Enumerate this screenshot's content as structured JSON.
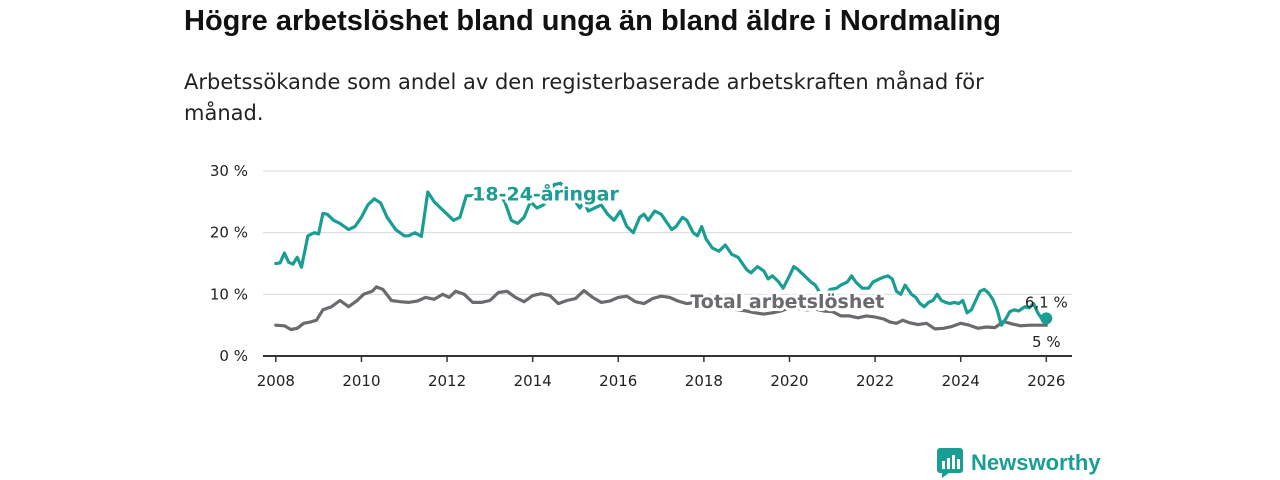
{
  "header": {
    "title": "Högre arbetslöshet bland unga än bland äldre i Nordmaling",
    "subtitle": "Arbetssökande som andel av den registerbaserade arbetskraften månad för månad."
  },
  "branding": {
    "name": "Newsworthy",
    "color": "#1a9e94"
  },
  "chart_data": {
    "type": "line",
    "title": "Högre arbetslöshet bland unga än bland äldre i Nordmaling",
    "subtitle": "Arbetssökande som andel av den registerbaserade arbetskraften månad för månad.",
    "xlabel": "",
    "ylabel": "",
    "x_ticks": [
      "2008",
      "2010",
      "2012",
      "2014",
      "2016",
      "2018",
      "2020",
      "2022",
      "2024",
      "2026"
    ],
    "y_ticks": [
      "0 %",
      "10 %",
      "20 %",
      "30 %"
    ],
    "xlim": [
      2007.7,
      2026.6
    ],
    "ylim": [
      0,
      30
    ],
    "grid": true,
    "legend": "inline",
    "series": [
      {
        "name": "18-24-åringar",
        "color": "#1a9e94",
        "end_label": "6,1 %",
        "end_marker": true,
        "points": [
          [
            2008.0,
            15.0
          ],
          [
            2008.1,
            15.1
          ],
          [
            2008.2,
            16.7
          ],
          [
            2008.3,
            15.2
          ],
          [
            2008.4,
            14.9
          ],
          [
            2008.5,
            16.0
          ],
          [
            2008.6,
            14.4
          ],
          [
            2008.75,
            19.5
          ],
          [
            2008.9,
            20.0
          ],
          [
            2009.0,
            19.8
          ],
          [
            2009.1,
            23.1
          ],
          [
            2009.2,
            23.0
          ],
          [
            2009.35,
            22.0
          ],
          [
            2009.5,
            21.5
          ],
          [
            2009.6,
            21.0
          ],
          [
            2009.7,
            20.5
          ],
          [
            2009.85,
            21.0
          ],
          [
            2010.0,
            22.5
          ],
          [
            2010.15,
            24.5
          ],
          [
            2010.3,
            25.5
          ],
          [
            2010.45,
            24.8
          ],
          [
            2010.6,
            22.5
          ],
          [
            2010.8,
            20.5
          ],
          [
            2011.0,
            19.5
          ],
          [
            2011.1,
            19.5
          ],
          [
            2011.25,
            20.0
          ],
          [
            2011.4,
            19.4
          ],
          [
            2011.55,
            26.6
          ],
          [
            2011.7,
            25.0
          ],
          [
            2011.85,
            24.0
          ],
          [
            2012.0,
            23.0
          ],
          [
            2012.15,
            22.0
          ],
          [
            2012.3,
            22.5
          ],
          [
            2012.45,
            26.0
          ],
          [
            2012.6,
            26.0
          ],
          [
            2012.75,
            25.5
          ],
          [
            2012.9,
            27.0
          ],
          [
            2013.05,
            26.2
          ],
          [
            2013.2,
            26.5
          ],
          [
            2013.35,
            25.0
          ],
          [
            2013.5,
            22.0
          ],
          [
            2013.65,
            21.5
          ],
          [
            2013.8,
            22.5
          ],
          [
            2013.95,
            25.0
          ],
          [
            2014.1,
            24.0
          ],
          [
            2014.25,
            24.5
          ],
          [
            2014.4,
            26.0
          ],
          [
            2014.5,
            27.8
          ],
          [
            2014.65,
            28.0
          ],
          [
            2014.8,
            27.0
          ],
          [
            2014.95,
            25.5
          ],
          [
            2015.1,
            24.0
          ],
          [
            2015.2,
            25.0
          ],
          [
            2015.3,
            23.5
          ],
          [
            2015.45,
            24.0
          ],
          [
            2015.6,
            24.5
          ],
          [
            2015.75,
            23.0
          ],
          [
            2015.9,
            22.0
          ],
          [
            2016.05,
            23.5
          ],
          [
            2016.2,
            21.0
          ],
          [
            2016.35,
            20.0
          ],
          [
            2016.5,
            22.5
          ],
          [
            2016.6,
            23.0
          ],
          [
            2016.7,
            22.0
          ],
          [
            2016.85,
            23.5
          ],
          [
            2017.0,
            23.0
          ],
          [
            2017.15,
            21.5
          ],
          [
            2017.25,
            20.5
          ],
          [
            2017.35,
            21.0
          ],
          [
            2017.5,
            22.5
          ],
          [
            2017.6,
            22.0
          ],
          [
            2017.75,
            20.0
          ],
          [
            2017.85,
            19.5
          ],
          [
            2017.95,
            21.0
          ],
          [
            2018.05,
            19.0
          ],
          [
            2018.2,
            17.5
          ],
          [
            2018.35,
            17.0
          ],
          [
            2018.5,
            18.0
          ],
          [
            2018.65,
            16.5
          ],
          [
            2018.8,
            16.0
          ],
          [
            2018.9,
            15.0
          ],
          [
            2019.0,
            14.0
          ],
          [
            2019.1,
            13.5
          ],
          [
            2019.25,
            14.5
          ],
          [
            2019.4,
            13.8
          ],
          [
            2019.5,
            12.5
          ],
          [
            2019.6,
            13.0
          ],
          [
            2019.75,
            12.0
          ],
          [
            2019.85,
            11.0
          ],
          [
            2020.0,
            13.0
          ],
          [
            2020.1,
            14.5
          ],
          [
            2020.2,
            14.0
          ],
          [
            2020.35,
            13.0
          ],
          [
            2020.5,
            12.0
          ],
          [
            2020.6,
            11.5
          ],
          [
            2020.75,
            9.8
          ],
          [
            2020.85,
            10.0
          ],
          [
            2020.95,
            10.8
          ],
          [
            2021.1,
            11.0
          ],
          [
            2021.2,
            11.5
          ],
          [
            2021.35,
            12.0
          ],
          [
            2021.45,
            13.0
          ],
          [
            2021.55,
            12.0
          ],
          [
            2021.7,
            11.0
          ],
          [
            2021.85,
            11.0
          ],
          [
            2021.95,
            12.0
          ],
          [
            2022.1,
            12.5
          ],
          [
            2022.2,
            12.8
          ],
          [
            2022.3,
            13.0
          ],
          [
            2022.4,
            12.5
          ],
          [
            2022.5,
            10.5
          ],
          [
            2022.6,
            10.0
          ],
          [
            2022.7,
            11.5
          ],
          [
            2022.85,
            10.0
          ],
          [
            2022.95,
            9.5
          ],
          [
            2023.05,
            8.5
          ],
          [
            2023.15,
            8.0
          ],
          [
            2023.25,
            8.7
          ],
          [
            2023.35,
            9.0
          ],
          [
            2023.45,
            10.0
          ],
          [
            2023.55,
            9.0
          ],
          [
            2023.65,
            8.7
          ],
          [
            2023.75,
            8.5
          ],
          [
            2023.85,
            8.7
          ],
          [
            2023.95,
            8.5
          ],
          [
            2024.05,
            9.0
          ],
          [
            2024.15,
            7.0
          ],
          [
            2024.25,
            7.5
          ],
          [
            2024.35,
            9.0
          ],
          [
            2024.45,
            10.5
          ],
          [
            2024.55,
            10.8
          ],
          [
            2024.65,
            10.2
          ],
          [
            2024.75,
            9.2
          ],
          [
            2024.85,
            7.5
          ],
          [
            2024.95,
            5.0
          ],
          [
            2025.05,
            6.0
          ],
          [
            2025.15,
            7.2
          ],
          [
            2025.25,
            7.5
          ],
          [
            2025.35,
            7.3
          ],
          [
            2025.5,
            8.0
          ],
          [
            2025.6,
            7.8
          ],
          [
            2025.7,
            8.5
          ],
          [
            2025.8,
            7.0
          ],
          [
            2025.9,
            6.0
          ],
          [
            2026.0,
            6.1
          ]
        ]
      },
      {
        "name": "Total arbetslöshet",
        "color": "#6b6b6f",
        "end_label": "5 %",
        "end_marker": false,
        "points": [
          [
            2008.0,
            5.0
          ],
          [
            2008.2,
            4.9
          ],
          [
            2008.35,
            4.3
          ],
          [
            2008.5,
            4.5
          ],
          [
            2008.65,
            5.3
          ],
          [
            2008.8,
            5.5
          ],
          [
            2008.95,
            5.8
          ],
          [
            2009.1,
            7.5
          ],
          [
            2009.3,
            8.0
          ],
          [
            2009.5,
            9.0
          ],
          [
            2009.7,
            8.0
          ],
          [
            2009.9,
            9.0
          ],
          [
            2010.05,
            10.0
          ],
          [
            2010.25,
            10.5
          ],
          [
            2010.35,
            11.2
          ],
          [
            2010.5,
            10.8
          ],
          [
            2010.7,
            9.0
          ],
          [
            2010.9,
            8.8
          ],
          [
            2011.1,
            8.7
          ],
          [
            2011.3,
            8.9
          ],
          [
            2011.5,
            9.5
          ],
          [
            2011.7,
            9.2
          ],
          [
            2011.9,
            10.0
          ],
          [
            2012.05,
            9.5
          ],
          [
            2012.2,
            10.5
          ],
          [
            2012.4,
            10.0
          ],
          [
            2012.6,
            8.7
          ],
          [
            2012.8,
            8.7
          ],
          [
            2013.0,
            9.0
          ],
          [
            2013.2,
            10.3
          ],
          [
            2013.4,
            10.5
          ],
          [
            2013.6,
            9.5
          ],
          [
            2013.8,
            8.8
          ],
          [
            2014.0,
            9.8
          ],
          [
            2014.2,
            10.1
          ],
          [
            2014.4,
            9.8
          ],
          [
            2014.6,
            8.5
          ],
          [
            2014.8,
            9.0
          ],
          [
            2015.0,
            9.3
          ],
          [
            2015.2,
            10.6
          ],
          [
            2015.4,
            9.5
          ],
          [
            2015.6,
            8.7
          ],
          [
            2015.8,
            8.9
          ],
          [
            2016.0,
            9.5
          ],
          [
            2016.2,
            9.7
          ],
          [
            2016.4,
            8.8
          ],
          [
            2016.6,
            8.5
          ],
          [
            2016.8,
            9.3
          ],
          [
            2017.0,
            9.7
          ],
          [
            2017.2,
            9.5
          ],
          [
            2017.4,
            8.9
          ],
          [
            2017.6,
            8.5
          ],
          [
            2017.8,
            8.7
          ],
          [
            2018.0,
            8.5
          ],
          [
            2018.2,
            8.3
          ],
          [
            2018.4,
            8.0
          ],
          [
            2018.6,
            7.8
          ],
          [
            2018.8,
            7.5
          ],
          [
            2019.0,
            7.3
          ],
          [
            2019.2,
            7.0
          ],
          [
            2019.4,
            6.8
          ],
          [
            2019.6,
            7.0
          ],
          [
            2019.8,
            7.3
          ],
          [
            2020.0,
            7.8
          ],
          [
            2020.2,
            7.7
          ],
          [
            2020.4,
            7.5
          ],
          [
            2020.6,
            7.6
          ],
          [
            2020.8,
            7.3
          ],
          [
            2021.0,
            7.2
          ],
          [
            2021.2,
            6.5
          ],
          [
            2021.4,
            6.5
          ],
          [
            2021.6,
            6.2
          ],
          [
            2021.8,
            6.5
          ],
          [
            2022.0,
            6.3
          ],
          [
            2022.2,
            6.0
          ],
          [
            2022.35,
            5.5
          ],
          [
            2022.5,
            5.3
          ],
          [
            2022.65,
            5.8
          ],
          [
            2022.8,
            5.4
          ],
          [
            2023.0,
            5.1
          ],
          [
            2023.2,
            5.3
          ],
          [
            2023.4,
            4.4
          ],
          [
            2023.6,
            4.5
          ],
          [
            2023.8,
            4.8
          ],
          [
            2024.0,
            5.3
          ],
          [
            2024.2,
            5.0
          ],
          [
            2024.4,
            4.5
          ],
          [
            2024.6,
            4.7
          ],
          [
            2024.8,
            4.6
          ],
          [
            2025.0,
            5.6
          ],
          [
            2025.2,
            5.2
          ],
          [
            2025.4,
            4.9
          ],
          [
            2025.6,
            5.0
          ],
          [
            2025.8,
            5.0
          ],
          [
            2026.0,
            5.0
          ]
        ]
      }
    ]
  }
}
